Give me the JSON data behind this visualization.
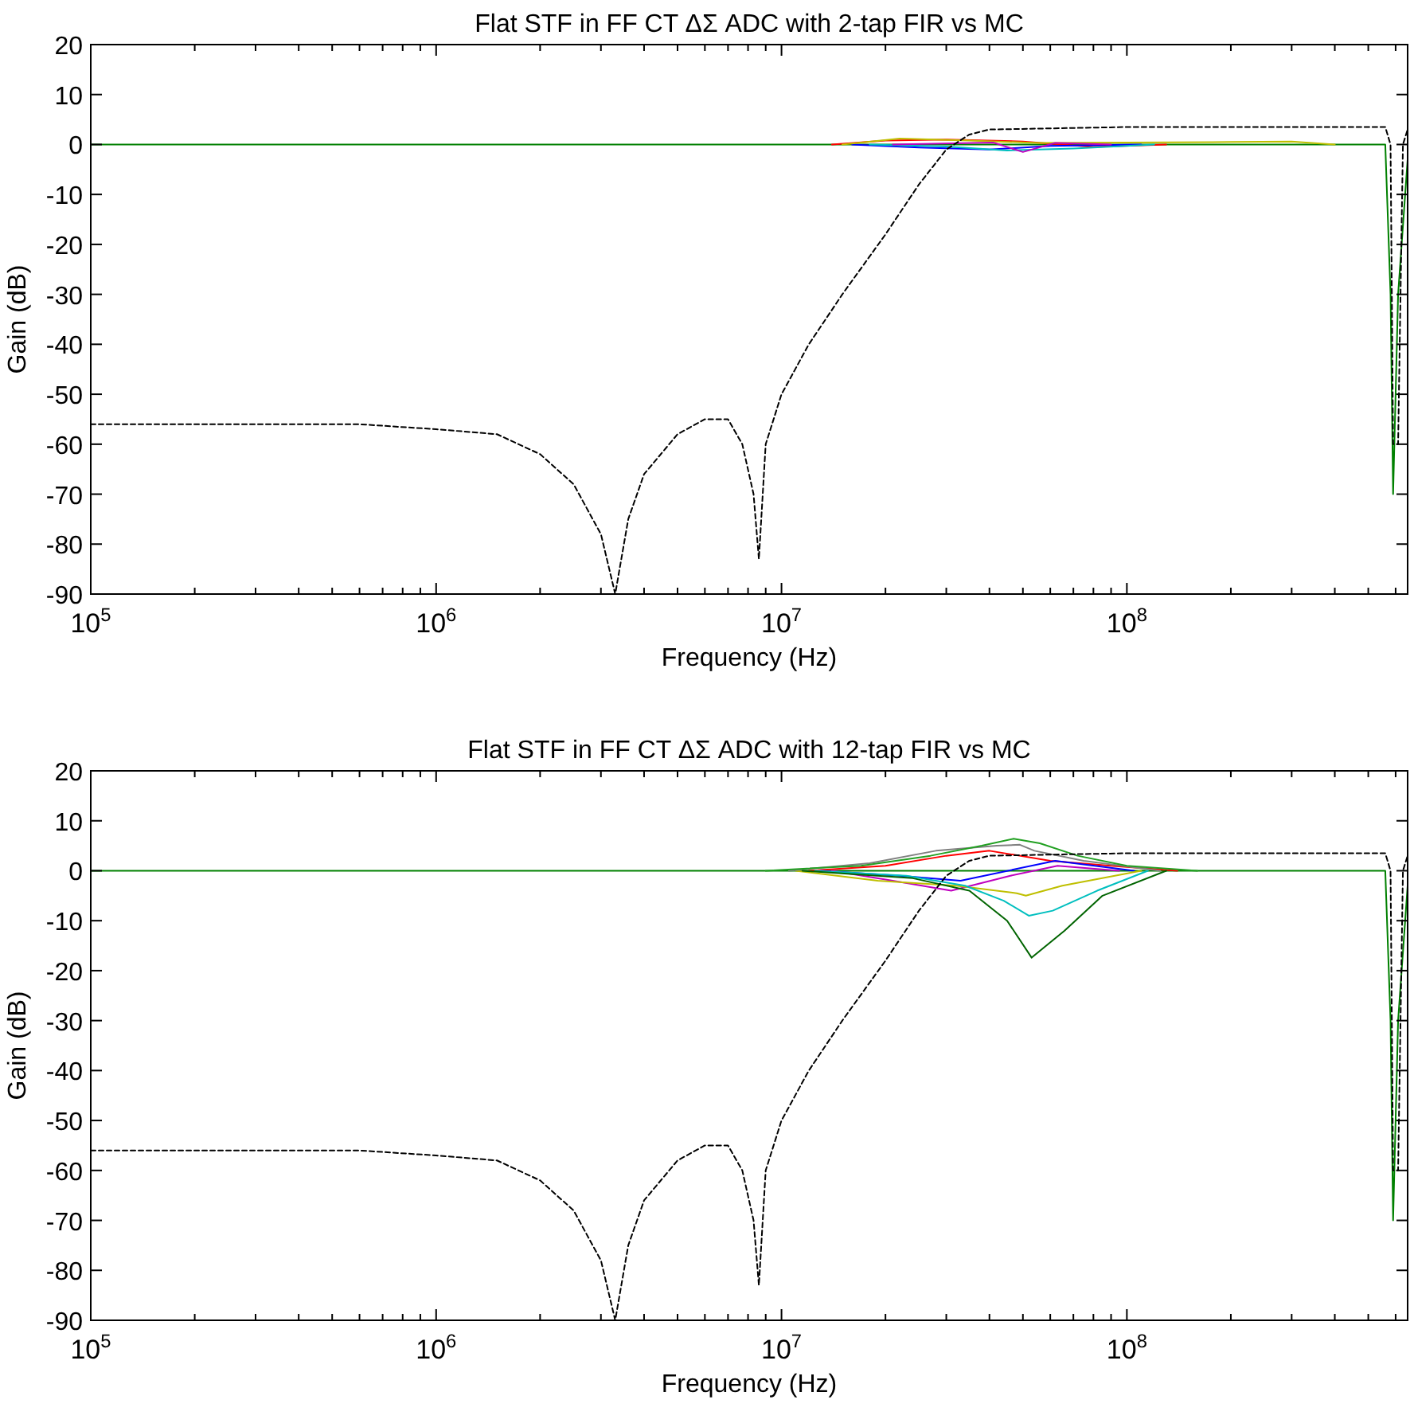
{
  "chart_data": [
    {
      "type": "line",
      "title": "Flat STF in FF CT ΔΣ ADC with 2-tap FIR vs MC",
      "xlabel": "Frequency (Hz)",
      "ylabel": "Gain (dB)",
      "log": "x",
      "grid": false,
      "marker": "none",
      "xlim": [
        100000,
        650000000
      ],
      "ylim": [
        -90,
        20
      ],
      "xticks": [
        {
          "value": 100000,
          "label": "10$^{5}$"
        },
        {
          "value": 200000,
          "label": null
        },
        {
          "value": 300000,
          "label": null
        },
        {
          "value": 400000,
          "label": null
        },
        {
          "value": 500000,
          "label": null
        },
        {
          "value": 600000,
          "label": null
        },
        {
          "value": 700000,
          "label": null
        },
        {
          "value": 800000,
          "label": null
        },
        {
          "value": 900000,
          "label": null
        },
        {
          "value": 1000000,
          "label": "10$^{6}$"
        },
        {
          "value": 2000000,
          "label": null
        },
        {
          "value": 3000000,
          "label": null
        },
        {
          "value": 4000000,
          "label": null
        },
        {
          "value": 5000000,
          "label": null
        },
        {
          "value": 6000000,
          "label": null
        },
        {
          "value": 7000000,
          "label": null
        },
        {
          "value": 8000000,
          "label": null
        },
        {
          "value": 9000000,
          "label": null
        },
        {
          "value": 10000000,
          "label": "10$^{7}$"
        },
        {
          "value": 20000000,
          "label": null
        },
        {
          "value": 30000000,
          "label": null
        },
        {
          "value": 40000000,
          "label": null
        },
        {
          "value": 50000000,
          "label": null
        },
        {
          "value": 60000000,
          "label": null
        },
        {
          "value": 70000000,
          "label": null
        },
        {
          "value": 80000000,
          "label": null
        },
        {
          "value": 90000000,
          "label": null
        },
        {
          "value": 100000000,
          "label": "10$^{8}$"
        },
        {
          "value": 200000000,
          "label": null
        },
        {
          "value": 300000000,
          "label": null
        },
        {
          "value": 400000000,
          "label": null
        },
        {
          "value": 500000000,
          "label": null
        },
        {
          "value": 600000000,
          "label": null
        }
      ],
      "yticks": [
        -90,
        -80,
        -70,
        -60,
        -50,
        -40,
        -30,
        -20,
        -10,
        0,
        10,
        20
      ],
      "series": [
        {
          "color": "#008000",
          "line_style": "solid",
          "x": [
            100000,
            1000000,
            5000000,
            10000000,
            500000000,
            560000000,
            580000000,
            590000000,
            610000000,
            650000000
          ],
          "values": [
            0,
            0,
            0,
            0,
            0,
            0,
            -30,
            -70,
            -30,
            -3
          ]
        },
        {
          "color": "#ff0000",
          "line_style": "solid",
          "x": [
            14000000,
            20000000,
            30000000,
            50000000,
            80000000,
            130000000
          ],
          "values": [
            0,
            0.8,
            1,
            0.6,
            -0.5,
            0
          ]
        },
        {
          "color": "#0000ff",
          "line_style": "solid",
          "x": [
            16000000,
            25000000,
            40000000,
            60000000,
            110000000
          ],
          "values": [
            0,
            -0.6,
            -1,
            -0.3,
            0
          ]
        },
        {
          "color": "#00bfbf",
          "line_style": "solid",
          "x": [
            18000000,
            30000000,
            45000000,
            70000000,
            120000000
          ],
          "values": [
            0,
            -0.4,
            -1.2,
            -0.8,
            0
          ]
        },
        {
          "color": "#bfbf00",
          "line_style": "solid",
          "x": [
            15000000,
            22000000,
            35000000,
            55000000,
            200000000,
            300000000,
            400000000
          ],
          "values": [
            0,
            1.2,
            0.8,
            0.3,
            0.5,
            0.6,
            0
          ]
        },
        {
          "color": "#bf00bf",
          "line_style": "solid",
          "x": [
            21000000,
            41000000,
            50000000,
            62000000,
            90000000
          ],
          "values": [
            0,
            0.4,
            -1.5,
            0.3,
            0
          ]
        },
        {
          "color": "#000000",
          "line_style": "dashed",
          "x": [
            100000,
            600000,
            1000000,
            1500000,
            2000000,
            2500000,
            3000000,
            3300000,
            3600000,
            4000000,
            5000000,
            6000000,
            7000000,
            7700000,
            8300000,
            8600000,
            9000000,
            10000000,
            12000000,
            15000000,
            20000000,
            25000000,
            30000000,
            35000000,
            40000000,
            100000000,
            560000000,
            580000000,
            590000000,
            610000000,
            630000000,
            650000000
          ],
          "values": [
            -56,
            -56,
            -57,
            -58,
            -62,
            -68,
            -78,
            -90,
            -75,
            -66,
            -58,
            -55,
            -55,
            -60,
            -70,
            -83,
            -60,
            -50,
            -40,
            -30,
            -18,
            -8,
            -1,
            2,
            3,
            3.5,
            3.5,
            0,
            -60,
            -60,
            0,
            3
          ]
        }
      ]
    },
    {
      "type": "line",
      "title": "Flat STF in FF CT ΔΣ ADC with 12-tap FIR vs MC",
      "xlabel": "Frequency (Hz)",
      "ylabel": "Gain (dB)",
      "log": "x",
      "grid": false,
      "marker": "none",
      "xlim": [
        100000,
        650000000
      ],
      "ylim": [
        -90,
        20
      ],
      "xticks": [
        {
          "value": 100000,
          "label": "10$^{5}$"
        },
        {
          "value": 200000,
          "label": null
        },
        {
          "value": 300000,
          "label": null
        },
        {
          "value": 400000,
          "label": null
        },
        {
          "value": 500000,
          "label": null
        },
        {
          "value": 600000,
          "label": null
        },
        {
          "value": 700000,
          "label": null
        },
        {
          "value": 800000,
          "label": null
        },
        {
          "value": 900000,
          "label": null
        },
        {
          "value": 1000000,
          "label": "10$^{6}$"
        },
        {
          "value": 2000000,
          "label": null
        },
        {
          "value": 3000000,
          "label": null
        },
        {
          "value": 4000000,
          "label": null
        },
        {
          "value": 5000000,
          "label": null
        },
        {
          "value": 6000000,
          "label": null
        },
        {
          "value": 7000000,
          "label": null
        },
        {
          "value": 8000000,
          "label": null
        },
        {
          "value": 9000000,
          "label": null
        },
        {
          "value": 10000000,
          "label": "10$^{7}$"
        },
        {
          "value": 20000000,
          "label": null
        },
        {
          "value": 30000000,
          "label": null
        },
        {
          "value": 40000000,
          "label": null
        },
        {
          "value": 50000000,
          "label": null
        },
        {
          "value": 60000000,
          "label": null
        },
        {
          "value": 70000000,
          "label": null
        },
        {
          "value": 80000000,
          "label": null
        },
        {
          "value": 90000000,
          "label": null
        },
        {
          "value": 100000000,
          "label": "10$^{8}$"
        },
        {
          "value": 200000000,
          "label": null
        },
        {
          "value": 300000000,
          "label": null
        },
        {
          "value": 400000000,
          "label": null
        },
        {
          "value": 500000000,
          "label": null
        },
        {
          "value": 600000000,
          "label": null
        }
      ],
      "yticks": [
        -90,
        -80,
        -70,
        -60,
        -50,
        -40,
        -30,
        -20,
        -10,
        0,
        10,
        20
      ],
      "series": [
        {
          "color": "#008000",
          "line_style": "solid",
          "x": [
            100000,
            1000000,
            5000000,
            200000000,
            300000000,
            560000000,
            580000000,
            590000000,
            610000000,
            650000000
          ],
          "values": [
            0,
            0,
            0,
            0,
            0,
            0,
            -30,
            -70,
            -30,
            -3
          ]
        },
        {
          "color": "#ff0000",
          "line_style": "solid",
          "x": [
            12000000,
            20000000,
            30000000,
            40000000,
            60000000,
            90000000,
            140000000
          ],
          "values": [
            0,
            1,
            3,
            4,
            2,
            1,
            0
          ]
        },
        {
          "color": "#0000ff",
          "line_style": "solid",
          "x": [
            13000000,
            22000000,
            33000000,
            62000000,
            105000000
          ],
          "values": [
            0,
            -1,
            -2,
            2,
            0
          ]
        },
        {
          "color": "#bf00bf",
          "line_style": "solid",
          "x": [
            14000000,
            21000000,
            31000000,
            46000000,
            63000000,
            95000000
          ],
          "values": [
            0,
            -2,
            -4,
            -1,
            1,
            0
          ]
        },
        {
          "color": "#bfbf00",
          "line_style": "solid",
          "x": [
            11000000,
            19000000,
            32000000,
            48000000,
            51000000,
            65000000,
            110000000
          ],
          "values": [
            0,
            -2,
            -3,
            -4.5,
            -5,
            -3,
            0
          ]
        },
        {
          "color": "#00bfbf",
          "line_style": "solid",
          "x": [
            12500000,
            23000000,
            34000000,
            44000000,
            52000000,
            61000000,
            82000000,
            115000000
          ],
          "values": [
            0,
            -1,
            -3,
            -6,
            -9,
            -8,
            -4,
            0
          ]
        },
        {
          "color": "#808080",
          "line_style": "solid",
          "x": [
            10500000,
            18000000,
            28000000,
            42000000,
            49000000,
            54000000,
            75000000,
            125000000
          ],
          "values": [
            0,
            1.5,
            4,
            5,
            5.2,
            4,
            2,
            0
          ]
        },
        {
          "color": "#006400",
          "line_style": "solid",
          "x": [
            11500000,
            24000000,
            35000000,
            45000000,
            53000000,
            66000000,
            85000000,
            130000000
          ],
          "values": [
            0,
            -1.5,
            -4,
            -10,
            -17.4,
            -12,
            -5,
            0
          ]
        },
        {
          "color": "#22a022",
          "line_style": "solid",
          "x": [
            9000000,
            17000000,
            27000000,
            38000000,
            47000000,
            56000000,
            72000000,
            100000000,
            160000000
          ],
          "values": [
            0,
            1,
            3,
            5,
            6.4,
            5.5,
            3,
            1,
            0
          ]
        },
        {
          "color": "#000000",
          "line_style": "dashed",
          "x": [
            100000,
            600000,
            1000000,
            1500000,
            2000000,
            2500000,
            3000000,
            3300000,
            3600000,
            4000000,
            5000000,
            6000000,
            7000000,
            7700000,
            8300000,
            8600000,
            9000000,
            10000000,
            12000000,
            15000000,
            20000000,
            25000000,
            30000000,
            35000000,
            40000000,
            100000000,
            560000000,
            580000000,
            590000000,
            610000000,
            630000000,
            650000000
          ],
          "values": [
            -56,
            -56,
            -57,
            -58,
            -62,
            -68,
            -78,
            -90,
            -75,
            -66,
            -58,
            -55,
            -55,
            -60,
            -70,
            -83,
            -60,
            -50,
            -40,
            -30,
            -18,
            -8,
            -1,
            2,
            3,
            3.5,
            3.5,
            0,
            -60,
            -60,
            0,
            3
          ]
        }
      ]
    }
  ]
}
